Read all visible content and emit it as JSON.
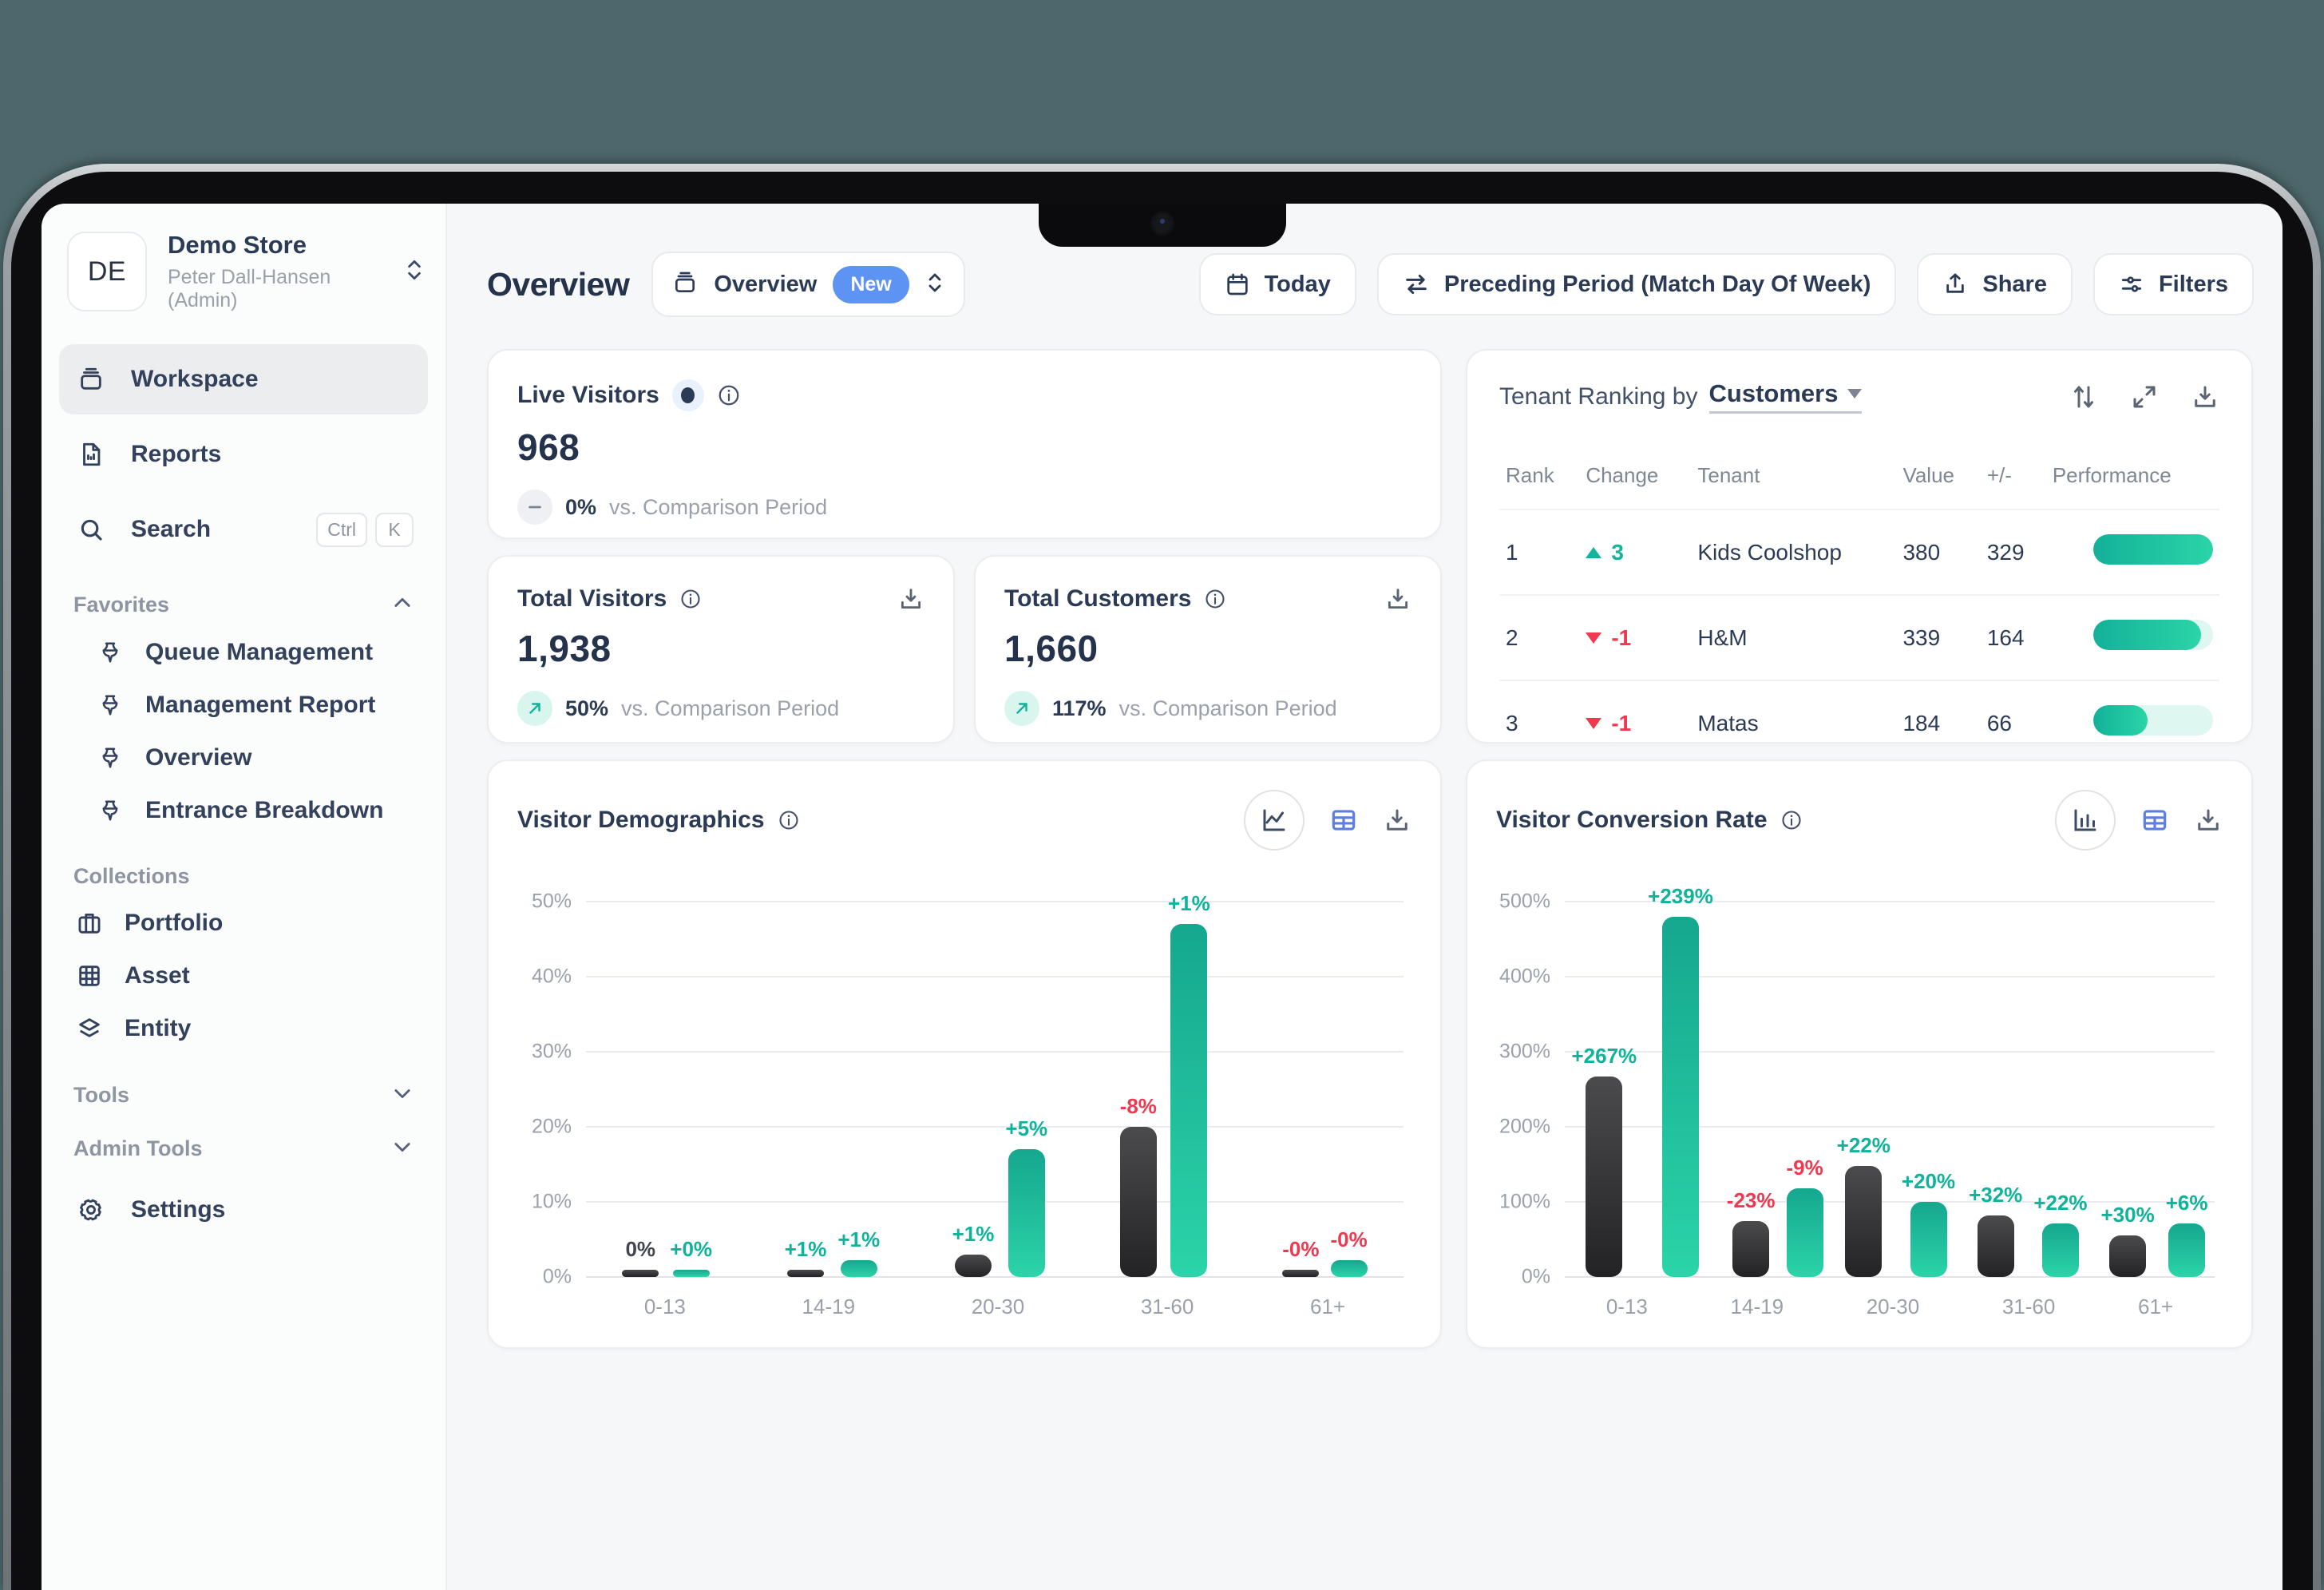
{
  "colors": {
    "accent_teal": "#12b59b",
    "negative_red": "#f0394f",
    "badge_blue": "#5d93f2",
    "table_icon_blue": "#5d7ee0",
    "bar_green_top": "#15a78f",
    "bar_green_bottom": "#2bd4a8",
    "bar_dark": "#2a2a2c",
    "background_teal": "#4d686c"
  },
  "sidebar": {
    "store": {
      "initials": "DE",
      "name": "Demo Store",
      "subtitle": "Peter Dall-Hansen (Admin)"
    },
    "primary_nav": [
      {
        "id": "workspace",
        "label": "Workspace",
        "icon": "workspace-icon",
        "active": true
      },
      {
        "id": "reports",
        "label": "Reports",
        "icon": "reports-icon",
        "active": false
      },
      {
        "id": "search",
        "label": "Search",
        "icon": "search-icon",
        "active": false,
        "shortcut": [
          "Ctrl",
          "K"
        ]
      }
    ],
    "favorites": {
      "label": "Favorites",
      "chevron": "up",
      "items": [
        {
          "label": "Queue Management",
          "icon": "pin-icon"
        },
        {
          "label": "Management Report",
          "icon": "pin-icon"
        },
        {
          "label": "Overview",
          "icon": "pin-icon"
        },
        {
          "label": "Entrance Breakdown",
          "icon": "pin-icon"
        }
      ]
    },
    "collections": {
      "label": "Collections",
      "items": [
        {
          "label": "Portfolio",
          "icon": "briefcase-icon"
        },
        {
          "label": "Asset",
          "icon": "grid-icon"
        },
        {
          "label": "Entity",
          "icon": "layers-icon"
        }
      ]
    },
    "groups": [
      {
        "label": "Tools",
        "chevron": "down"
      },
      {
        "label": "Admin Tools",
        "chevron": "down"
      }
    ],
    "settings": {
      "label": "Settings",
      "icon": "gear-icon"
    }
  },
  "header": {
    "page_title": "Overview",
    "view_switcher": {
      "label": "Overview",
      "badge": "New"
    },
    "buttons": {
      "today": "Today",
      "period": "Preceding Period (Match Day Of Week)",
      "share": "Share",
      "filters": "Filters"
    }
  },
  "cards": {
    "live_visitors": {
      "title": "Live Visitors",
      "value": "968",
      "compare_pct": "0%",
      "compare_label": "vs. Comparison Period",
      "trend": "neutral"
    },
    "total_visitors": {
      "title": "Total Visitors",
      "value": "1,938",
      "compare_pct": "50%",
      "compare_label": "vs. Comparison Period",
      "trend": "up"
    },
    "total_customers": {
      "title": "Total Customers",
      "value": "1,660",
      "compare_pct": "117%",
      "compare_label": "vs. Comparison Period",
      "trend": "up"
    },
    "tenant_ranking": {
      "title_prefix": "Tenant Ranking by",
      "metric_selector": "Customers",
      "columns": [
        "Rank",
        "Change",
        "Tenant",
        "Value",
        "+/-",
        "Performance"
      ],
      "rows": [
        {
          "rank": "1",
          "change": "3",
          "change_dir": "up",
          "tenant": "Kids Coolshop",
          "value": "380",
          "delta": "329",
          "performance_pct": 100
        },
        {
          "rank": "2",
          "change": "-1",
          "change_dir": "down",
          "tenant": "H&M",
          "value": "339",
          "delta": "164",
          "performance_pct": 90
        },
        {
          "rank": "3",
          "change": "-1",
          "change_dir": "down",
          "tenant": "Matas",
          "value": "184",
          "delta": "66",
          "performance_pct": 45
        }
      ]
    }
  },
  "chart_data": [
    {
      "type": "bar",
      "key": "demographics",
      "title": "Visitor Demographics",
      "categories": [
        "0-13",
        "14-19",
        "20-30",
        "31-60",
        "61+"
      ],
      "ylim": [
        0,
        50
      ],
      "yticks": [
        "0%",
        "10%",
        "20%",
        "30%",
        "40%",
        "50%"
      ],
      "grid": true,
      "series": [
        {
          "name": "dark",
          "values": [
            1,
            0.4,
            3,
            20,
            1
          ],
          "labels": [
            "0%",
            "+1%",
            "+1%",
            "-8%",
            "-0%"
          ],
          "label_colors": [
            "dark",
            "green",
            "green",
            "red",
            "red"
          ]
        },
        {
          "name": "green",
          "values": [
            0.6,
            2.2,
            17,
            47,
            2.2
          ],
          "labels": [
            "+0%",
            "+1%",
            "+5%",
            "+1%",
            "-0%"
          ],
          "label_colors": [
            "green",
            "green",
            "green",
            "green",
            "red"
          ]
        }
      ]
    },
    {
      "type": "bar",
      "key": "conversion",
      "title": "Visitor Conversion Rate",
      "categories": [
        "0-13",
        "14-19",
        "20-30",
        "31-60",
        "61+"
      ],
      "ylim": [
        0,
        500
      ],
      "yticks": [
        "0%",
        "100%",
        "200%",
        "300%",
        "400%",
        "500%"
      ],
      "grid": true,
      "series": [
        {
          "name": "dark",
          "values": [
            267,
            75,
            148,
            82,
            55
          ],
          "labels": [
            "+267%",
            "-23%",
            "+22%",
            "+32%",
            "+30%"
          ],
          "label_colors": [
            "green",
            "red",
            "green",
            "green",
            "green"
          ]
        },
        {
          "name": "green",
          "values": [
            480,
            118,
            100,
            71,
            71
          ],
          "labels": [
            "+239%",
            "-9%",
            "+20%",
            "+22%",
            "+6%"
          ],
          "label_colors": [
            "green",
            "red",
            "green",
            "green",
            "green"
          ]
        }
      ]
    }
  ]
}
